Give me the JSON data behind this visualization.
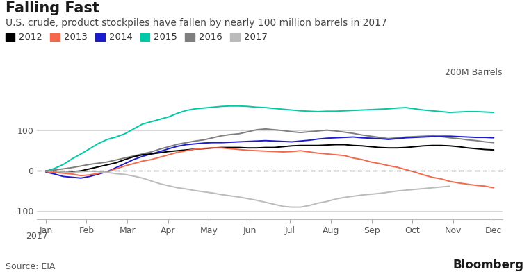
{
  "title": "Falling Fast",
  "subtitle": "U.S. crude, product stockpiles have fallen by nearly 100 million barrels in 2017",
  "source": "Source: EIA",
  "ylabel_annotation": "200M Barrels",
  "ylim": [
    -120,
    220
  ],
  "yticks": [
    -100,
    0,
    100
  ],
  "background_color": "#ffffff",
  "grid_color": "#d8d8d8",
  "series": {
    "2012": {
      "color": "#000000",
      "data": [
        0,
        -2,
        -4,
        -3,
        0,
        5,
        10,
        15,
        20,
        28,
        35,
        40,
        42,
        45,
        48,
        50,
        52,
        54,
        55,
        57,
        58,
        58,
        58,
        57,
        57,
        58,
        58,
        60,
        62,
        63,
        63,
        63,
        64,
        65,
        65,
        63,
        62,
        60,
        58,
        57,
        57,
        58,
        60,
        62,
        63,
        63,
        62,
        60,
        57,
        55,
        53,
        52
      ]
    },
    "2013": {
      "color": "#f4694b",
      "data": [
        -2,
        -4,
        -6,
        -8,
        -12,
        -10,
        -6,
        -2,
        5,
        12,
        18,
        24,
        28,
        34,
        40,
        46,
        50,
        54,
        56,
        57,
        57,
        55,
        53,
        51,
        50,
        49,
        48,
        47,
        48,
        50,
        47,
        44,
        42,
        40,
        38,
        32,
        28,
        22,
        18,
        13,
        9,
        3,
        -3,
        -10,
        -16,
        -20,
        -26,
        -30,
        -33,
        -36,
        -38,
        -42
      ]
    },
    "2014": {
      "color": "#1c1ccc",
      "data": [
        -3,
        -8,
        -14,
        -16,
        -18,
        -14,
        -8,
        -2,
        8,
        18,
        28,
        36,
        42,
        48,
        55,
        61,
        65,
        67,
        69,
        70,
        70,
        71,
        72,
        73,
        74,
        75,
        74,
        73,
        72,
        74,
        76,
        79,
        81,
        82,
        83,
        84,
        82,
        81,
        80,
        78,
        80,
        82,
        83,
        84,
        85,
        86,
        86,
        85,
        84,
        83,
        83,
        82
      ]
    },
    "2015": {
      "color": "#00c9a7",
      "data": [
        -1,
        6,
        16,
        30,
        42,
        55,
        68,
        78,
        84,
        92,
        104,
        116,
        122,
        128,
        134,
        143,
        150,
        154,
        156,
        158,
        160,
        161,
        161,
        160,
        158,
        157,
        155,
        153,
        151,
        149,
        148,
        147,
        148,
        148,
        149,
        150,
        151,
        152,
        153,
        154,
        156,
        157,
        154,
        151,
        149,
        147,
        145,
        146,
        147,
        147,
        146,
        145
      ]
    },
    "2016": {
      "color": "#7f7f7f",
      "data": [
        0,
        2,
        5,
        8,
        12,
        16,
        19,
        22,
        27,
        32,
        37,
        42,
        47,
        54,
        60,
        66,
        70,
        74,
        77,
        82,
        87,
        90,
        92,
        97,
        102,
        104,
        102,
        100,
        97,
        95,
        97,
        99,
        101,
        99,
        96,
        93,
        89,
        86,
        83,
        80,
        82,
        84,
        85,
        86,
        87,
        85,
        82,
        80,
        77,
        75,
        72,
        70
      ]
    },
    "2017": {
      "color": "#bbbbbb",
      "data": [
        0,
        -1,
        -3,
        -4,
        -2,
        -1,
        -2,
        -4,
        -7,
        -9,
        -13,
        -18,
        -25,
        -32,
        -37,
        -42,
        -45,
        -49,
        -52,
        -55,
        -59,
        -62,
        -65,
        -69,
        -73,
        -78,
        -83,
        -88,
        -90,
        -90,
        -86,
        -80,
        -76,
        -70,
        -66,
        -63,
        -60,
        -58,
        -56,
        -53,
        -50,
        -48,
        -46,
        -44,
        -42,
        -40,
        -38,
        null,
        null,
        null,
        null,
        null
      ]
    }
  },
  "months": [
    "Jan",
    "Feb",
    "Mar",
    "Apr",
    "May",
    "Jun",
    "Jul",
    "Aug",
    "Sep",
    "Oct",
    "Nov",
    "Dec"
  ],
  "legend_order": [
    "2012",
    "2013",
    "2014",
    "2015",
    "2016",
    "2017"
  ],
  "title_fontsize": 15,
  "subtitle_fontsize": 10,
  "legend_fontsize": 9.5,
  "tick_fontsize": 9,
  "annotation_fontsize": 9
}
